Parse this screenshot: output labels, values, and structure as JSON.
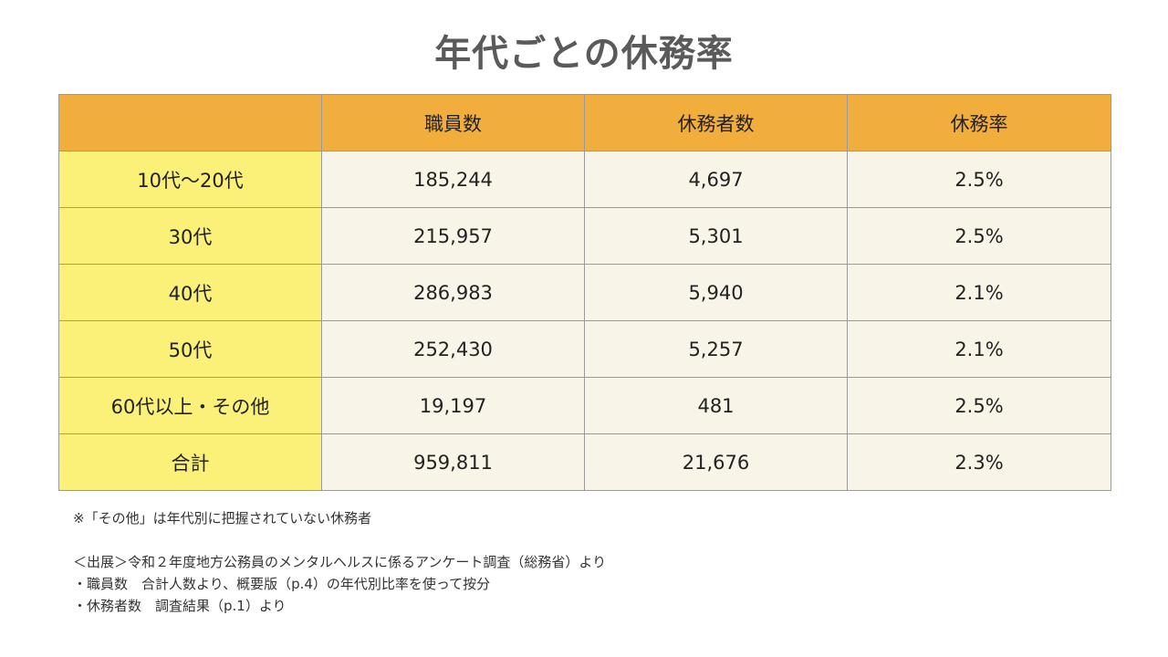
{
  "title": "年代ごとの休務率",
  "table": {
    "headers": [
      "",
      "職員数",
      "休務者数",
      "休務率"
    ],
    "rows": [
      {
        "label": "10代〜20代",
        "staff": "185,244",
        "absent": "4,697",
        "rate": "2.5%"
      },
      {
        "label": "30代",
        "staff": "215,957",
        "absent": "5,301",
        "rate": "2.5%"
      },
      {
        "label": "40代",
        "staff": "286,983",
        "absent": "5,940",
        "rate": "2.1%"
      },
      {
        "label": "50代",
        "staff": "252,430",
        "absent": "5,257",
        "rate": "2.1%"
      },
      {
        "label": "60代以上・その他",
        "staff": "19,197",
        "absent": "481",
        "rate": "2.5%"
      },
      {
        "label": "合計",
        "staff": "959,811",
        "absent": "21,676",
        "rate": "2.3%"
      }
    ]
  },
  "notes": {
    "asterisk": "※「その他」は年代別に把握されていない休務者",
    "source": "＜出展＞令和２年度地方公務員のメンタルヘルスに係るアンケート調査（総務省）より",
    "bullet1": "・職員数　合計人数より、概要版（p.4）の年代別比率を使って按分",
    "bullet2": "・休務者数　調査結果（p.1）より"
  },
  "colors": {
    "header_bg": "#f1ae3c",
    "row_label_bg": "#fbf078",
    "cell_bg": "#f8f5e8",
    "title_color": "#5a5a5a"
  }
}
